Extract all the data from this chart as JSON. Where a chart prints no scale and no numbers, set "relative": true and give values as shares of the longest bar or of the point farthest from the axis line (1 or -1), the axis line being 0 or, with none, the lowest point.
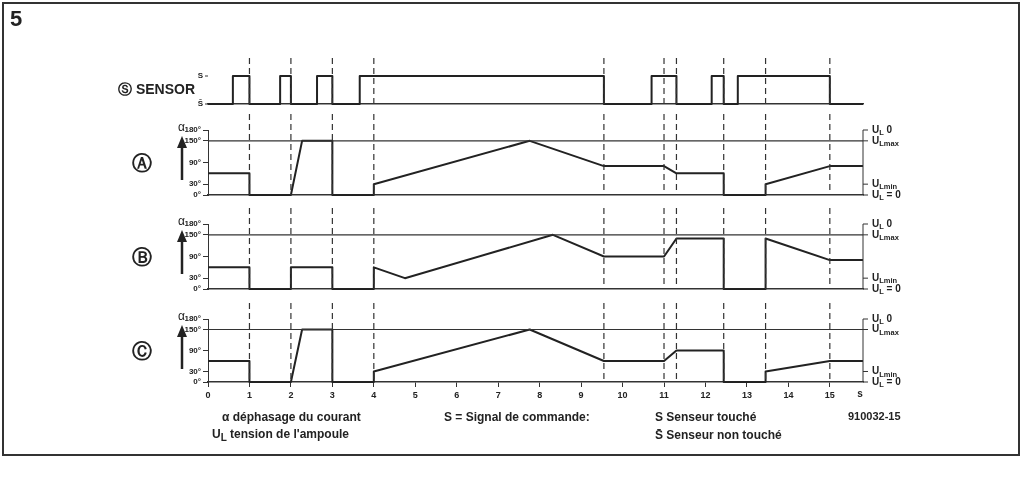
{
  "chart_data": [
    {
      "type": "line",
      "title": "Ⓢ SENSOR",
      "annotations": [
        "5",
        "S",
        "S̄"
      ],
      "xlim": [
        0,
        15.8
      ],
      "relative": true,
      "tick_labels": false,
      "marker": "none",
      "line_style": "solid",
      "grid": false,
      "legend": false,
      "series": [
        {
          "color": "#222222",
          "x": [
            0,
            0.6,
            0.6,
            1,
            1,
            1.74,
            1.74,
            2,
            2,
            2.63,
            2.63,
            3,
            3,
            3.66,
            3.66,
            9.55,
            9.55,
            10.7,
            10.7,
            11.3,
            11.3,
            12.15,
            12.15,
            12.44,
            12.44,
            12.78,
            12.78,
            15,
            15,
            15.8
          ],
          "values": [
            0,
            0,
            1,
            1,
            0,
            0,
            1,
            1,
            0,
            0,
            1,
            1,
            0,
            0,
            1,
            1,
            0,
            0,
            1,
            1,
            0,
            0,
            1,
            1,
            0,
            0,
            1,
            1,
            0,
            0
          ]
        }
      ],
      "ref_lines": [
        {
          "axis": "x",
          "value": 1,
          "line_style": "dashed"
        },
        {
          "axis": "x",
          "value": 2,
          "line_style": "dashed"
        },
        {
          "axis": "x",
          "value": 3,
          "line_style": "dashed"
        },
        {
          "axis": "x",
          "value": 4,
          "line_style": "dashed"
        },
        {
          "axis": "x",
          "value": 9.55,
          "line_style": "dashed"
        },
        {
          "axis": "x",
          "value": 11,
          "line_style": "dashed"
        },
        {
          "axis": "x",
          "value": 11.3,
          "line_style": "dashed"
        },
        {
          "axis": "x",
          "value": 12.44,
          "line_style": "dashed"
        },
        {
          "axis": "x",
          "value": 13.45,
          "line_style": "dashed"
        },
        {
          "axis": "x",
          "value": 15,
          "line_style": "dashed"
        }
      ]
    },
    {
      "type": "line",
      "title": "Ⓐ",
      "ylabel": "α",
      "xlim": [
        0,
        15.8
      ],
      "ylim": [
        0,
        180
      ],
      "yticks": [
        {
          "value": 180,
          "label": "180°"
        },
        {
          "value": 150,
          "label": "150°"
        },
        {
          "value": 90,
          "label": "90°"
        },
        {
          "value": 30,
          "label": "30°"
        },
        {
          "value": 0,
          "label": "0°"
        }
      ],
      "annotations": [
        "U$_{L}$ 0",
        "U$_{Lmax}$",
        "U$_{Lmin}$",
        "U$_{L}$ = 0"
      ],
      "tick_labels": "y",
      "marker": "none",
      "line_style": "solid",
      "grid": false,
      "legend": false,
      "series": [
        {
          "color": "#222222",
          "x": [
            0,
            1,
            1,
            2,
            2.27,
            3,
            3,
            4,
            4,
            7.76,
            9.55,
            11,
            11.3,
            12.44,
            12.44,
            13.45,
            13.45,
            15,
            15.8
          ],
          "values": [
            60,
            60,
            0,
            0,
            150,
            150,
            0,
            0,
            30,
            150,
            80,
            80,
            60,
            60,
            0,
            0,
            30,
            80,
            80
          ]
        }
      ],
      "ref_lines": [
        {
          "axis": "y",
          "value": 150,
          "line_style": "solid"
        },
        {
          "axis": "x",
          "value": 1,
          "line_style": "dashed"
        },
        {
          "axis": "x",
          "value": 2,
          "line_style": "dashed"
        },
        {
          "axis": "x",
          "value": 3,
          "line_style": "dashed"
        },
        {
          "axis": "x",
          "value": 4,
          "line_style": "dashed"
        },
        {
          "axis": "x",
          "value": 9.55,
          "line_style": "dashed"
        },
        {
          "axis": "x",
          "value": 11,
          "line_style": "dashed"
        },
        {
          "axis": "x",
          "value": 11.3,
          "line_style": "dashed"
        },
        {
          "axis": "x",
          "value": 12.44,
          "line_style": "dashed"
        },
        {
          "axis": "x",
          "value": 13.45,
          "line_style": "dashed"
        },
        {
          "axis": "x",
          "value": 15,
          "line_style": "dashed"
        }
      ]
    },
    {
      "type": "line",
      "title": "Ⓑ",
      "ylabel": "α",
      "xlim": [
        0,
        15.8
      ],
      "ylim": [
        0,
        180
      ],
      "yticks": [
        {
          "value": 180,
          "label": "180°"
        },
        {
          "value": 150,
          "label": "150°"
        },
        {
          "value": 90,
          "label": "90°"
        },
        {
          "value": 30,
          "label": "30°"
        },
        {
          "value": 0,
          "label": "0°"
        }
      ],
      "annotations": [
        "U$_{L}$ 0",
        "U$_{Lmax}$",
        "U$_{Lmin}$",
        "U$_{L}$ = 0"
      ],
      "tick_labels": "y",
      "marker": "none",
      "line_style": "solid",
      "grid": false,
      "legend": false,
      "series": [
        {
          "color": "#222222",
          "x": [
            0,
            1,
            1,
            2,
            2,
            3,
            3,
            4,
            4,
            4.75,
            8.32,
            9.55,
            11,
            11.3,
            12.44,
            12.44,
            13.45,
            13.45,
            15,
            15.8
          ],
          "values": [
            60,
            60,
            0,
            0,
            60,
            60,
            0,
            0,
            60,
            30,
            150,
            90,
            90,
            140,
            140,
            0,
            0,
            140,
            80,
            80
          ]
        }
      ],
      "ref_lines": [
        {
          "axis": "y",
          "value": 150,
          "line_style": "solid"
        },
        {
          "axis": "x",
          "value": 1,
          "line_style": "dashed"
        },
        {
          "axis": "x",
          "value": 2,
          "line_style": "dashed"
        },
        {
          "axis": "x",
          "value": 3,
          "line_style": "dashed"
        },
        {
          "axis": "x",
          "value": 4,
          "line_style": "dashed"
        },
        {
          "axis": "x",
          "value": 9.55,
          "line_style": "dashed"
        },
        {
          "axis": "x",
          "value": 11,
          "line_style": "dashed"
        },
        {
          "axis": "x",
          "value": 11.3,
          "line_style": "dashed"
        },
        {
          "axis": "x",
          "value": 12.44,
          "line_style": "dashed"
        },
        {
          "axis": "x",
          "value": 13.45,
          "line_style": "dashed"
        },
        {
          "axis": "x",
          "value": 15,
          "line_style": "dashed"
        }
      ]
    },
    {
      "type": "line",
      "title": "Ⓒ",
      "ylabel": "α",
      "xlabel": "s",
      "xlim": [
        0,
        15.8
      ],
      "xticks": [
        0,
        1,
        2,
        3,
        4,
        5,
        6,
        7,
        8,
        9,
        10,
        11,
        12,
        13,
        14,
        15
      ],
      "ylim": [
        0,
        180
      ],
      "yticks": [
        {
          "value": 180,
          "label": "180°"
        },
        {
          "value": 150,
          "label": "150°"
        },
        {
          "value": 90,
          "label": "90°"
        },
        {
          "value": 30,
          "label": "30°"
        },
        {
          "value": 0,
          "label": "0°"
        }
      ],
      "marker": "none",
      "line_style": "solid",
      "grid": false,
      "legend": false,
      "annotations": [
        "U$_{L}$ 0",
        "U$_{Lmax}$",
        "U$_{Lmin}$",
        "U$_{L}$ = 0",
        "α déphasage du courant",
        "U$_{L}$ tension de l'ampoule",
        "S = Signal de commande:",
        "S Senseur touché",
        "S̄ Senseur non touché",
        "910032-15"
      ],
      "series": [
        {
          "color": "#222222",
          "x": [
            0,
            1,
            1,
            2,
            2.27,
            3,
            3,
            4,
            4,
            7.76,
            9.55,
            11,
            11.3,
            12.44,
            12.44,
            13.45,
            13.45,
            15,
            15.8
          ],
          "values": [
            60,
            60,
            0,
            0,
            150,
            150,
            0,
            0,
            30,
            150,
            60,
            60,
            90,
            90,
            0,
            0,
            30,
            60,
            60
          ]
        }
      ],
      "ref_lines": [
        {
          "axis": "y",
          "value": 150,
          "line_style": "solid"
        },
        {
          "axis": "x",
          "value": 1,
          "line_style": "dashed"
        },
        {
          "axis": "x",
          "value": 2,
          "line_style": "dashed"
        },
        {
          "axis": "x",
          "value": 3,
          "line_style": "dashed"
        },
        {
          "axis": "x",
          "value": 4,
          "line_style": "dashed"
        },
        {
          "axis": "x",
          "value": 9.55,
          "line_style": "dashed"
        },
        {
          "axis": "x",
          "value": 11,
          "line_style": "dashed"
        },
        {
          "axis": "x",
          "value": 11.3,
          "line_style": "dashed"
        },
        {
          "axis": "x",
          "value": 12.44,
          "line_style": "dashed"
        },
        {
          "axis": "x",
          "value": 13.45,
          "line_style": "dashed"
        },
        {
          "axis": "x",
          "value": 15,
          "line_style": "dashed"
        }
      ]
    }
  ]
}
